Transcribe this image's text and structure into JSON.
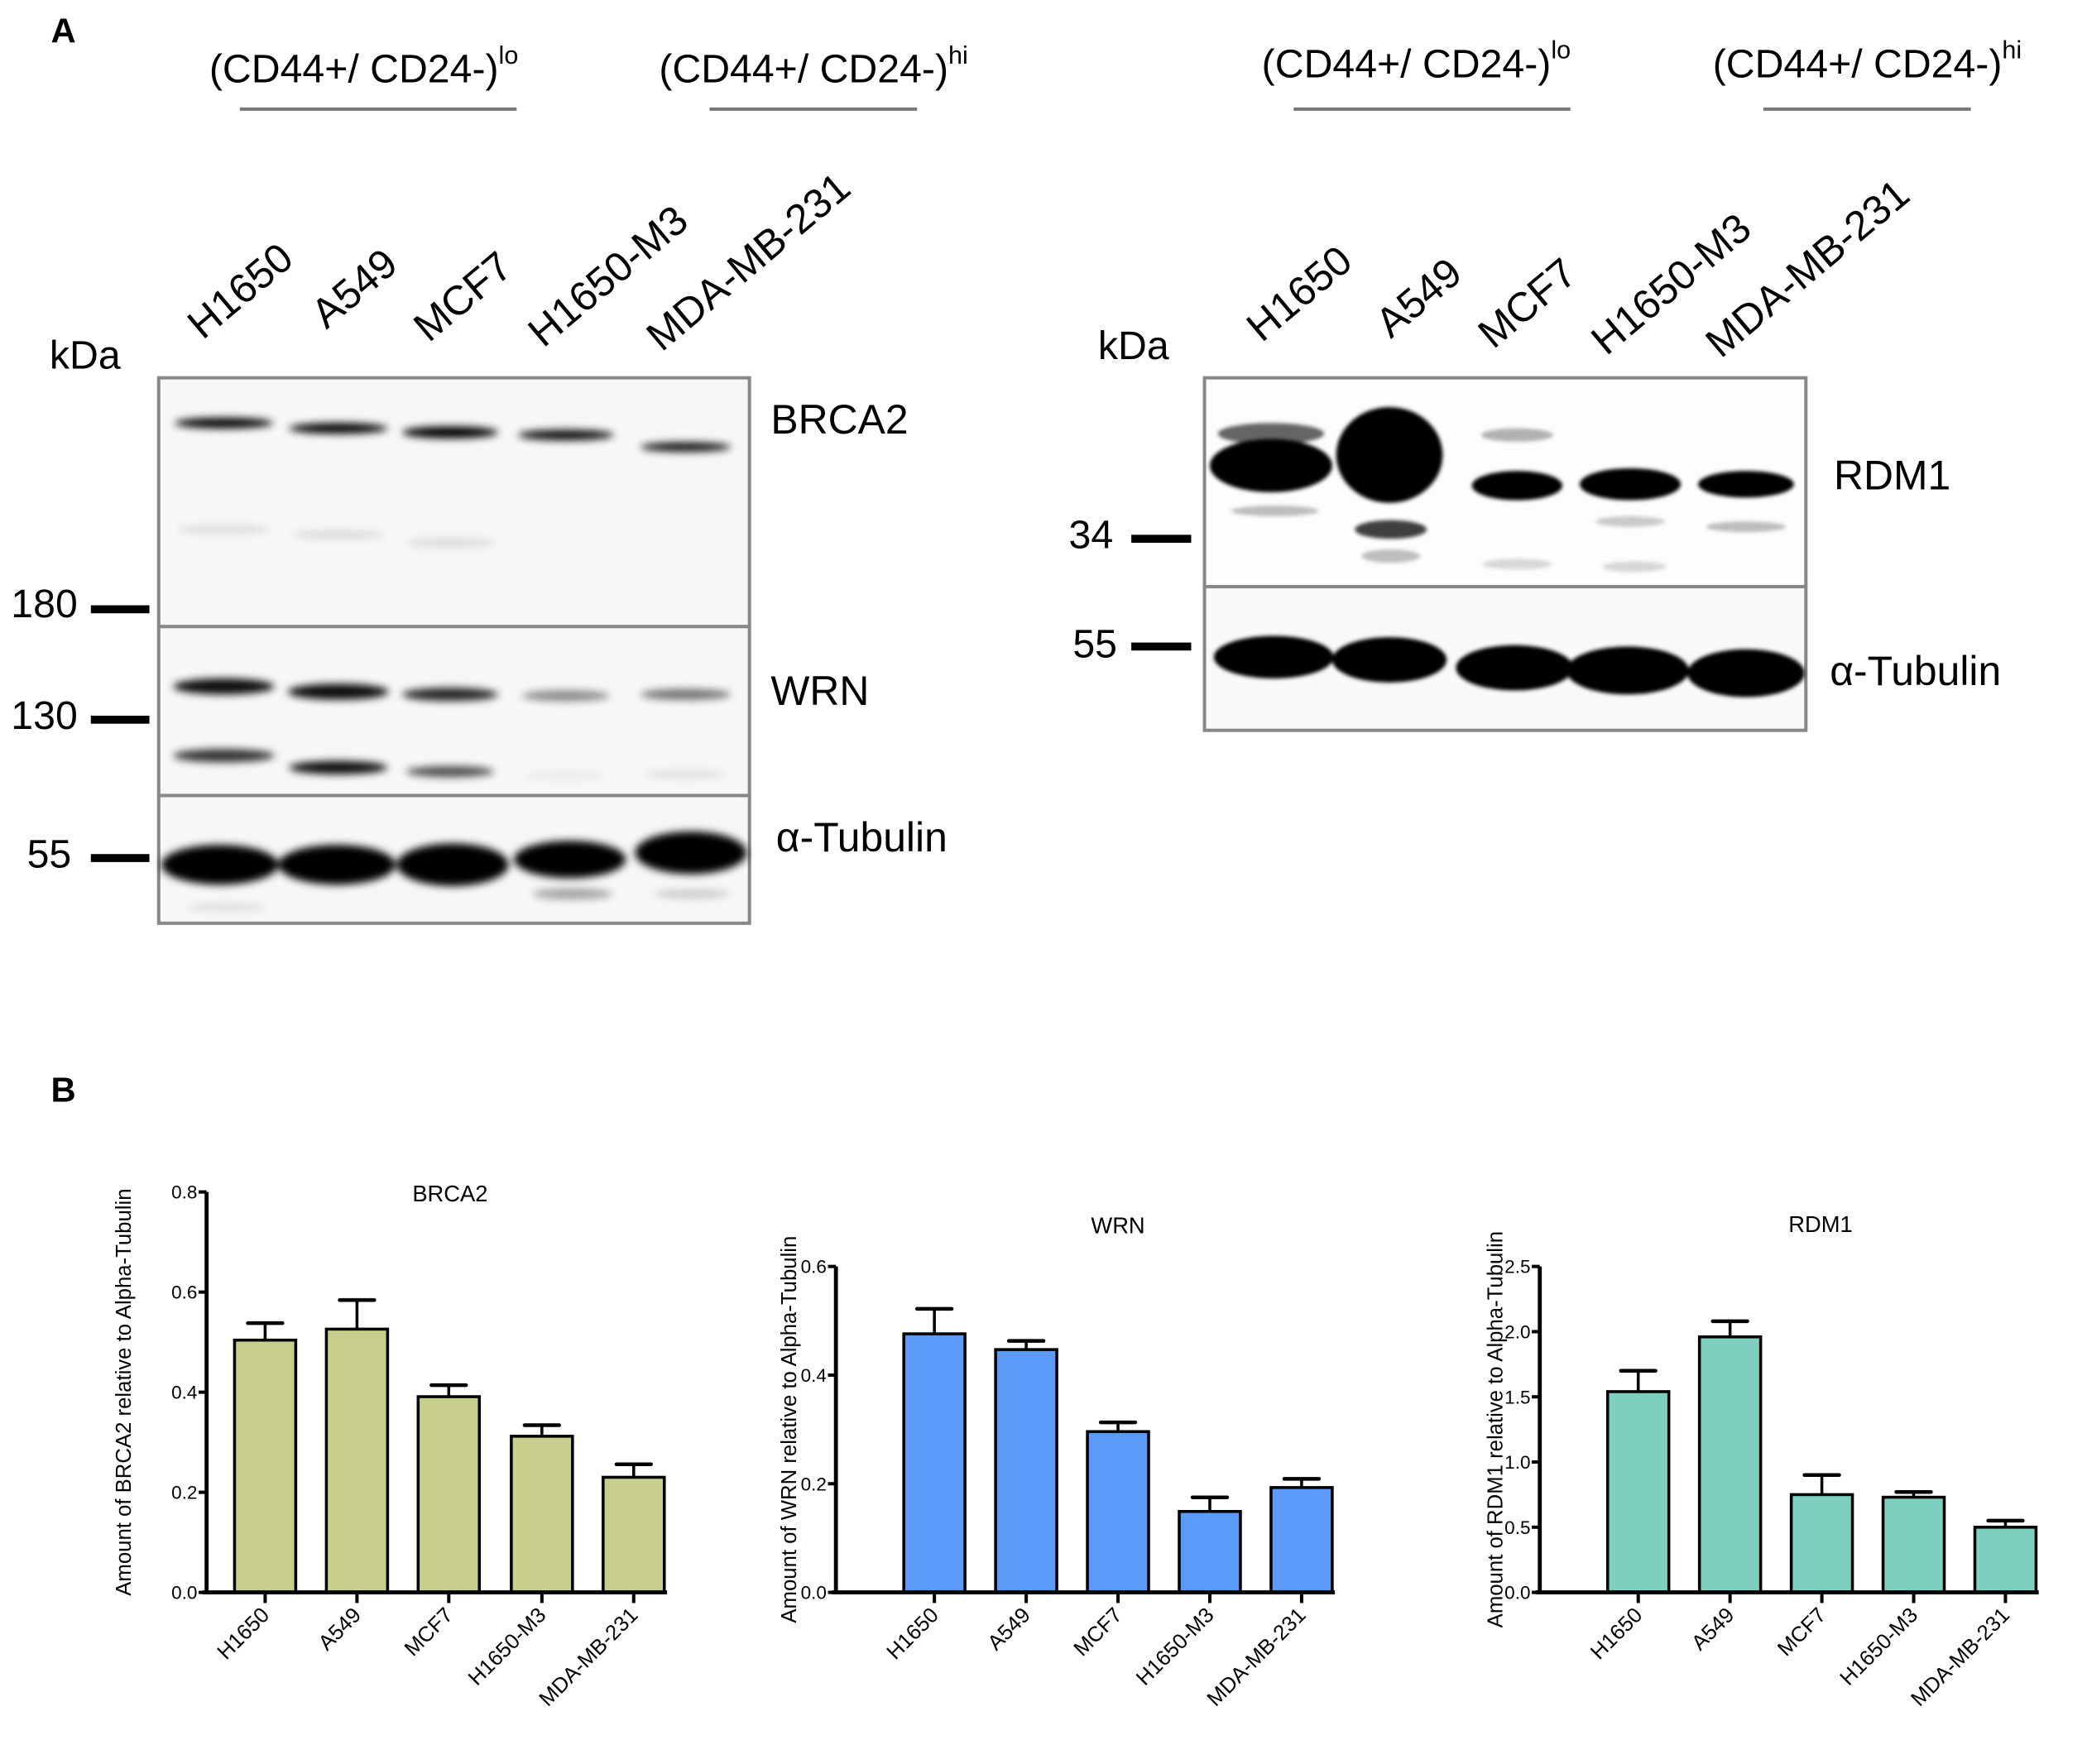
{
  "panel_a": {
    "label": "A",
    "left_blot": {
      "group_lo": {
        "text": "(CD44+/ CD24-)",
        "sup": "lo"
      },
      "group_hi": {
        "text": "(CD44+/ CD24-)",
        "sup": "hi"
      },
      "lanes": [
        "H1650",
        "A549",
        "MCF7",
        "H1650-M3",
        "MDA-MB-231"
      ],
      "unit": "kDa",
      "markers": [
        "180",
        "130",
        "55"
      ],
      "proteins": [
        "BRCA2",
        "WRN",
        "α-Tubulin"
      ]
    },
    "right_blot": {
      "group_lo": {
        "text": "(CD44+/ CD24-)",
        "sup": "lo"
      },
      "group_hi": {
        "text": "(CD44+/ CD24-)",
        "sup": "hi"
      },
      "lanes": [
        "H1650",
        "A549",
        "MCF7",
        "H1650-M3",
        "MDA-MB-231"
      ],
      "unit": "kDa",
      "markers": [
        "34",
        "55"
      ],
      "proteins": [
        "RDM1",
        "α-Tubulin"
      ]
    }
  },
  "panel_b": {
    "label": "B"
  },
  "chart_data": [
    {
      "type": "bar",
      "title": "BRCA2",
      "ylabel": "Amount of BRCA2 relative to Alpha-Tubulin",
      "xlabel": "",
      "categories": [
        "H1650",
        "A549",
        "MCF7",
        "H1650-M3",
        "MDA-MB-231"
      ],
      "values": [
        0.504,
        0.526,
        0.391,
        0.312,
        0.23
      ],
      "error_upper": [
        0.034,
        0.058,
        0.023,
        0.022,
        0.026
      ],
      "ylim": [
        0,
        0.8
      ],
      "yticks": [
        "0.0",
        "0.2",
        "0.4",
        "0.6",
        "0.8"
      ],
      "color": "#c8cf8c",
      "grid": false
    },
    {
      "type": "bar",
      "title": "WRN",
      "ylabel": "Amount of WRN relative to Alpha-Tubulin",
      "xlabel": "",
      "categories": [
        "H1650",
        "A549",
        "MCF7",
        "H1650-M3",
        "MDA-MB-231"
      ],
      "values": [
        0.476,
        0.447,
        0.296,
        0.149,
        0.193
      ],
      "error_upper": [
        0.046,
        0.016,
        0.017,
        0.026,
        0.016
      ],
      "ylim": [
        0,
        0.6
      ],
      "yticks": [
        "0.0",
        "0.2",
        "0.4",
        "0.6"
      ],
      "color": "#5b9bf7",
      "grid": false
    },
    {
      "type": "bar",
      "title": "RDM1",
      "ylabel": "Amount of RDM1 relative to Alpha-Tubulin",
      "xlabel": "",
      "categories": [
        "H1650",
        "A549",
        "MCF7",
        "H1650-M3",
        "MDA-MB-231"
      ],
      "values": [
        1.54,
        1.96,
        0.75,
        0.73,
        0.5
      ],
      "error_upper": [
        0.16,
        0.12,
        0.15,
        0.04,
        0.05
      ],
      "ylim": [
        0,
        2.5
      ],
      "yticks": [
        "0.0",
        "0.5",
        "1.0",
        "1.5",
        "2.0",
        "2.5"
      ],
      "color": "#7ecfc0",
      "grid": false
    }
  ]
}
